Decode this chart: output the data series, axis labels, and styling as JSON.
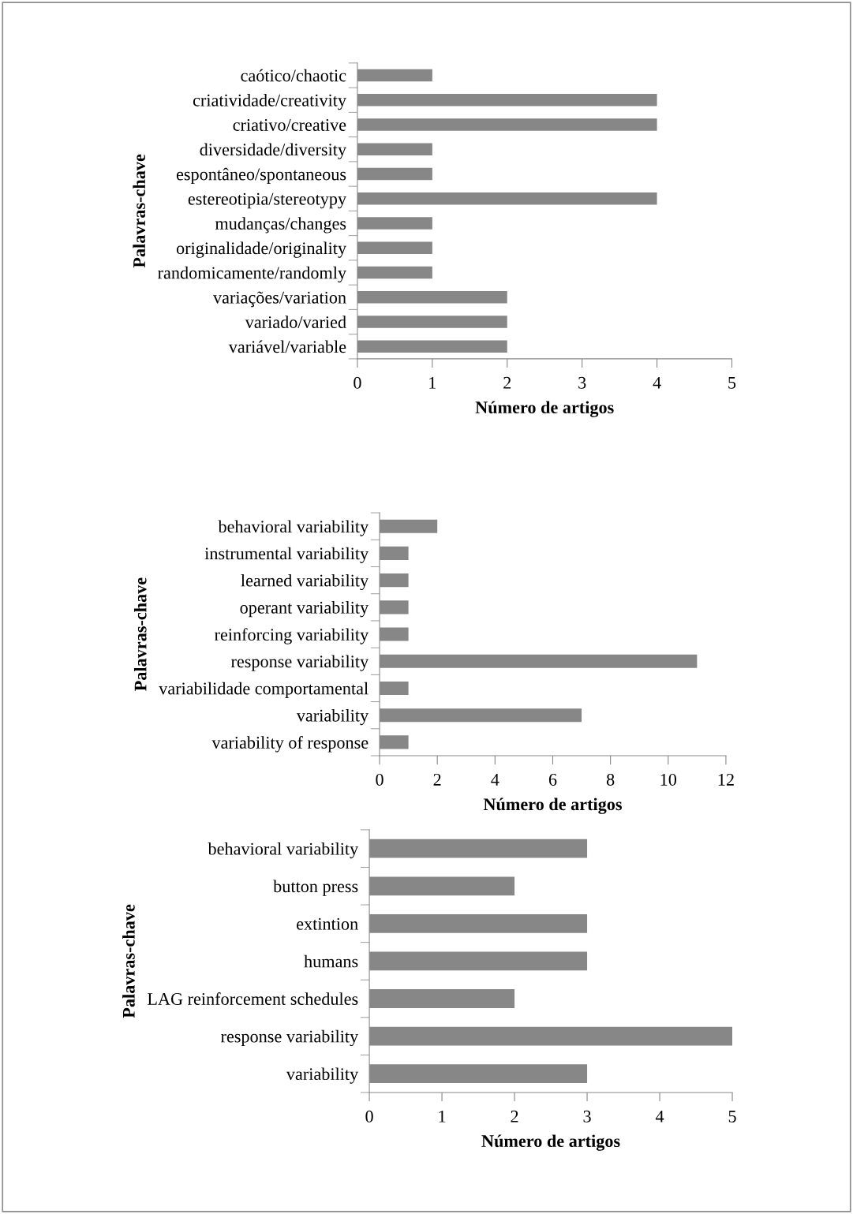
{
  "chart_data": [
    {
      "type": "bar",
      "orientation": "horizontal",
      "xlabel": "Número de artigos",
      "ylabel": "Palavras-chave",
      "color": "#878787",
      "categories": [
        "caótico/chaotic",
        "criatividade/creativity",
        "criativo/creative",
        "diversidade/diversity",
        "espontâneo/spontaneous",
        "estereotipia/stereotypy",
        "mudanças/changes",
        "originalidade/originality",
        "randomicamente/randomly",
        "variações/variation",
        "variado/varied",
        "variável/variable"
      ],
      "values": [
        1,
        4,
        4,
        1,
        1,
        4,
        1,
        1,
        1,
        2,
        2,
        2
      ],
      "xlim": [
        0,
        5
      ],
      "xticks": [
        0,
        1,
        2,
        3,
        4,
        5
      ],
      "grid": false
    },
    {
      "type": "bar",
      "orientation": "horizontal",
      "xlabel": "Número de artigos",
      "ylabel": "Palavras-chave",
      "color": "#878787",
      "categories": [
        "behavioral variability",
        "instrumental variability",
        "learned variability",
        "operant variability",
        "reinforcing variability",
        "response variability",
        "variabilidade comportamental",
        "variability",
        "variability of response"
      ],
      "values": [
        2,
        1,
        1,
        1,
        1,
        11,
        1,
        7,
        1
      ],
      "xlim": [
        0,
        12
      ],
      "xticks": [
        0,
        2,
        4,
        6,
        8,
        10,
        12
      ],
      "grid": false
    },
    {
      "type": "bar",
      "orientation": "horizontal",
      "xlabel": "Número de artigos",
      "ylabel": "Palavras-chave",
      "color": "#878787",
      "categories": [
        "behavioral variability",
        "button press",
        "extintion",
        "humans",
        "LAG reinforcement schedules",
        "response variability",
        "variability"
      ],
      "values": [
        3,
        2,
        3,
        3,
        2,
        5,
        3
      ],
      "xlim": [
        0,
        5
      ],
      "xticks": [
        0,
        1,
        2,
        3,
        4,
        5
      ],
      "grid": false
    }
  ]
}
